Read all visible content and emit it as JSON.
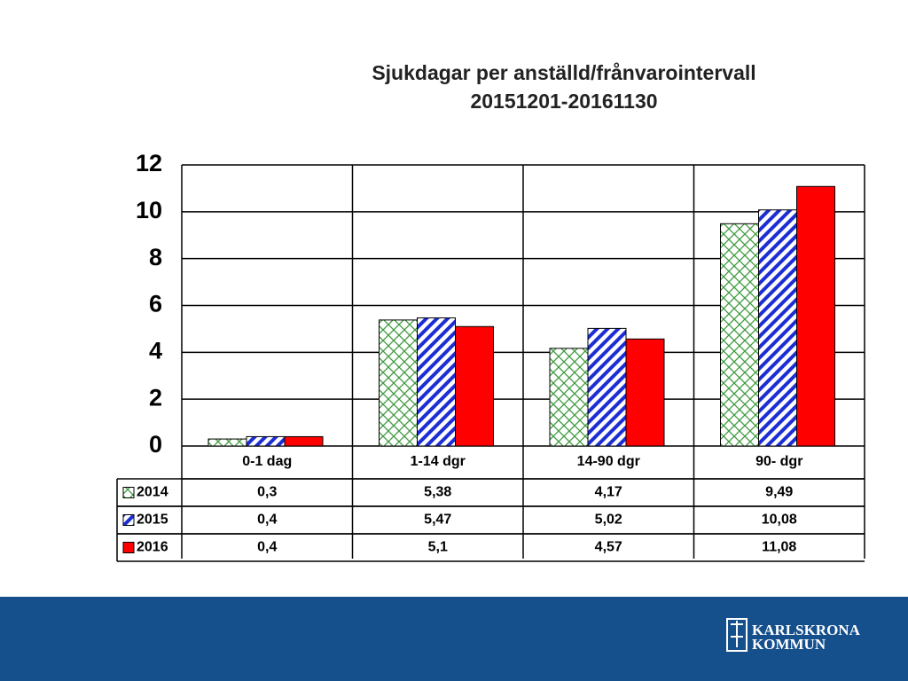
{
  "chart_data": {
    "type": "bar",
    "title": [
      "Sjukdagar per anställd/frånvarointervall",
      "20151201-20161130"
    ],
    "categories": [
      "0-1 dag",
      "1-14 dgr",
      "14-90 dgr",
      "90- dgr"
    ],
    "series": [
      {
        "name": "2014",
        "color": "#3c9a3c",
        "pattern": "crosshatch",
        "values": [
          0.3,
          5.38,
          4.17,
          9.49
        ],
        "value_labels": [
          "0,3",
          "5,38",
          "4,17",
          "9,49"
        ]
      },
      {
        "name": "2015",
        "color": "#1c2ed4",
        "pattern": "diagonal",
        "values": [
          0.4,
          5.47,
          5.02,
          10.08
        ],
        "value_labels": [
          "0,4",
          "5,47",
          "5,02",
          "10,08"
        ]
      },
      {
        "name": "2016",
        "color": "#ff0000",
        "pattern": "solid",
        "values": [
          0.4,
          5.1,
          4.57,
          11.08
        ],
        "value_labels": [
          "0,4",
          "5,1",
          "4,57",
          "11,08"
        ]
      }
    ],
    "ylim": [
      0,
      12
    ],
    "yticks": [
      0,
      2,
      4,
      6,
      8,
      10,
      12
    ],
    "grid": true
  },
  "footer": {
    "logo": [
      "KARLSKRONA",
      "KOMMUN"
    ]
  }
}
